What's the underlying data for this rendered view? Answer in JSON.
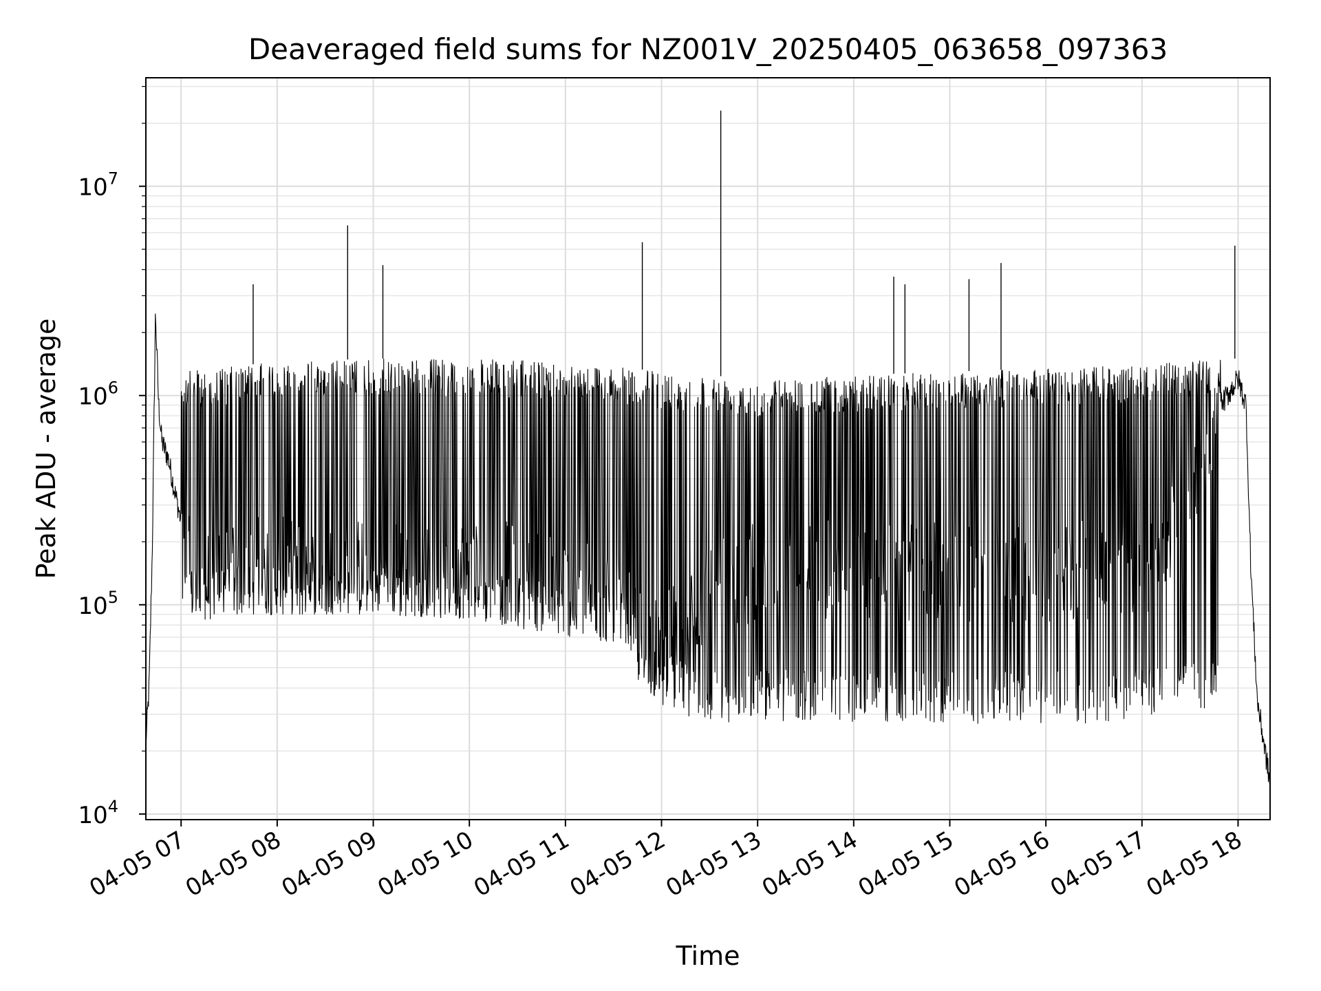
{
  "chart_data": {
    "type": "line",
    "title": "Deaveraged field sums for NZ001V_20250405_063658_097363",
    "xlabel": "Time",
    "ylabel": "Peak ADU - average",
    "xlim": [
      "2025-04-05 06:38",
      "2025-04-05 18:20"
    ],
    "ylim": [
      9400,
      33000000
    ],
    "yscale": "log",
    "grid": true,
    "x_ticks": [
      {
        "x": "2025-04-05 07:00",
        "label": "04-05 07"
      },
      {
        "x": "2025-04-05 08:00",
        "label": "04-05 08"
      },
      {
        "x": "2025-04-05 09:00",
        "label": "04-05 09"
      },
      {
        "x": "2025-04-05 10:00",
        "label": "04-05 10"
      },
      {
        "x": "2025-04-05 11:00",
        "label": "04-05 11"
      },
      {
        "x": "2025-04-05 12:00",
        "label": "04-05 12"
      },
      {
        "x": "2025-04-05 13:00",
        "label": "04-05 13"
      },
      {
        "x": "2025-04-05 14:00",
        "label": "04-05 14"
      },
      {
        "x": "2025-04-05 15:00",
        "label": "04-05 15"
      },
      {
        "x": "2025-04-05 16:00",
        "label": "04-05 16"
      },
      {
        "x": "2025-04-05 17:00",
        "label": "04-05 17"
      },
      {
        "x": "2025-04-05 18:00",
        "label": "04-05 18"
      }
    ],
    "y_ticks": [
      {
        "value": 10000,
        "base": "10",
        "exp": "4"
      },
      {
        "value": 100000,
        "base": "10",
        "exp": "5"
      },
      {
        "value": 1000000,
        "base": "10",
        "exp": "6"
      },
      {
        "value": 10000000,
        "base": "10",
        "exp": "7"
      }
    ],
    "series": [
      {
        "color": "#000000",
        "points": [
          [
            "2025-04-05 06:38",
            22000
          ],
          [
            "2025-04-05 06:40",
            40000
          ],
          [
            "2025-04-05 06:42",
            180000
          ],
          [
            "2025-04-05 06:44",
            2500000
          ],
          [
            "2025-04-05 06:46",
            900000
          ],
          [
            "2025-04-05 06:48",
            600000
          ],
          [
            "2025-04-05 06:52",
            500000
          ],
          [
            "2025-04-05 06:56",
            350000
          ],
          [
            "2025-04-05 07:00",
            250000
          ],
          [
            "2025-04-05 07:05",
            150000
          ],
          [
            "2025-04-05 07:10",
            110000
          ],
          [
            "2025-04-05 07:20",
            140000
          ],
          [
            "2025-04-05 07:30",
            160000
          ],
          [
            "2025-04-05 08:00",
            150000
          ],
          [
            "2025-04-05 08:30",
            140000
          ],
          [
            "2025-04-05 09:00",
            150000
          ],
          [
            "2025-04-05 09:30",
            140000
          ],
          [
            "2025-04-05 10:00",
            150000
          ],
          [
            "2025-04-05 10:30",
            140000
          ],
          [
            "2025-04-05 11:00",
            120000
          ],
          [
            "2025-04-05 11:30",
            110000
          ],
          [
            "2025-04-05 11:45",
            70000
          ],
          [
            "2025-04-05 12:00",
            60000
          ],
          [
            "2025-04-05 12:30",
            120000
          ],
          [
            "2025-04-05 13:00",
            150000
          ],
          [
            "2025-04-05 14:00",
            140000
          ],
          [
            "2025-04-05 15:00",
            140000
          ],
          [
            "2025-04-05 16:00",
            140000
          ],
          [
            "2025-04-05 17:00",
            150000
          ],
          [
            "2025-04-05 17:30",
            300000
          ],
          [
            "2025-04-05 17:45",
            800000
          ],
          [
            "2025-04-05 18:00",
            1200000
          ],
          [
            "2025-04-05 18:05",
            900000
          ],
          [
            "2025-04-05 18:08",
            150000
          ],
          [
            "2025-04-05 18:12",
            35000
          ],
          [
            "2025-04-05 18:20",
            14000
          ]
        ],
        "spikes": [
          [
            "2025-04-05 07:45",
            3400000
          ],
          [
            "2025-04-05 08:44",
            6500000
          ],
          [
            "2025-04-05 09:06",
            4200000
          ],
          [
            "2025-04-05 11:48",
            5400000
          ],
          [
            "2025-04-05 12:37",
            23000000
          ],
          [
            "2025-04-05 14:25",
            3700000
          ],
          [
            "2025-04-05 14:32",
            3400000
          ],
          [
            "2025-04-05 15:12",
            3600000
          ],
          [
            "2025-04-05 15:32",
            4300000
          ],
          [
            "2025-04-05 17:58",
            5200000
          ]
        ],
        "band_top": [
          [
            "2025-04-05 07:00",
            1300000
          ],
          [
            "2025-04-05 08:00",
            1450000
          ],
          [
            "2025-04-05 09:00",
            1500000
          ],
          [
            "2025-04-05 10:00",
            1500000
          ],
          [
            "2025-04-05 11:00",
            1450000
          ],
          [
            "2025-04-05 11:40",
            1350000
          ],
          [
            "2025-04-05 12:00",
            1300000
          ],
          [
            "2025-04-05 13:00",
            1200000
          ],
          [
            "2025-04-05 14:00",
            1250000
          ],
          [
            "2025-04-05 15:00",
            1300000
          ],
          [
            "2025-04-05 16:00",
            1350000
          ],
          [
            "2025-04-05 17:00",
            1400000
          ],
          [
            "2025-04-05 17:50",
            1500000
          ]
        ],
        "band_bottom": [
          [
            "2025-04-05 07:15",
            85000
          ],
          [
            "2025-04-05 08:00",
            90000
          ],
          [
            "2025-04-05 09:00",
            90000
          ],
          [
            "2025-04-05 10:00",
            85000
          ],
          [
            "2025-04-05 11:00",
            70000
          ],
          [
            "2025-04-05 11:40",
            65000
          ],
          [
            "2025-04-05 11:48",
            35000
          ],
          [
            "2025-04-05 12:30",
            27000
          ],
          [
            "2025-04-05 13:30",
            28000
          ],
          [
            "2025-04-05 14:30",
            27000
          ],
          [
            "2025-04-05 15:30",
            27000
          ],
          [
            "2025-04-05 16:30",
            27000
          ],
          [
            "2025-04-05 17:30",
            30000
          ]
        ]
      }
    ]
  }
}
